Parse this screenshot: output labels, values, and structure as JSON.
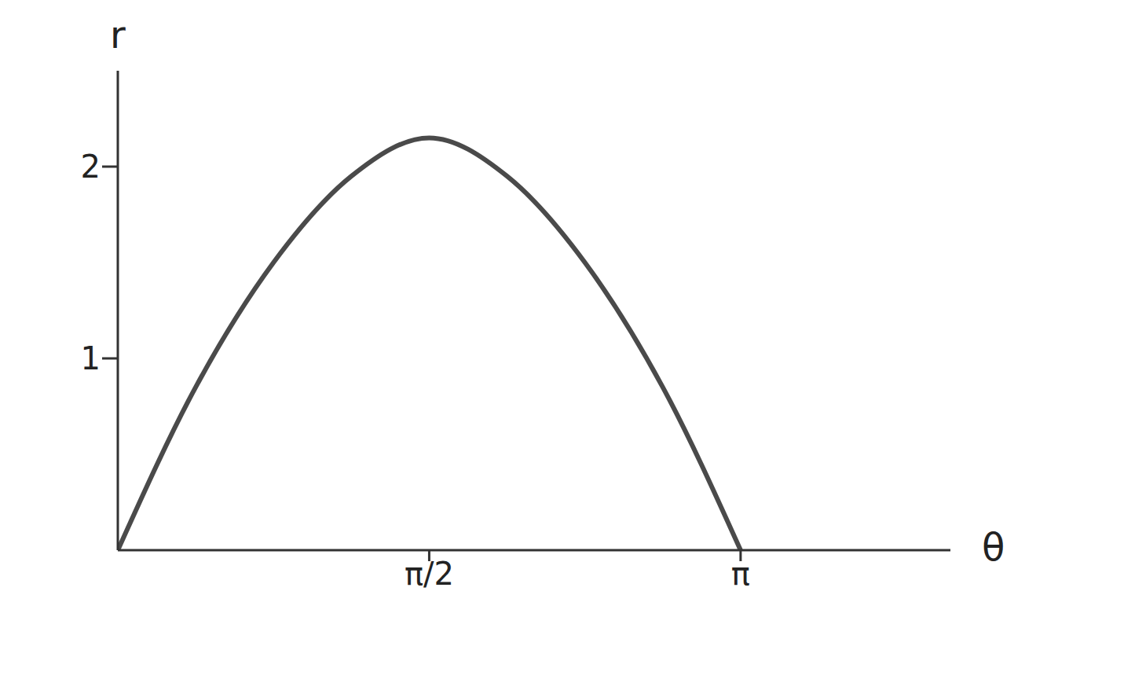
{
  "chart_data": {
    "type": "line",
    "x_label": "θ",
    "y_label": "r",
    "x": [
      0,
      0.3927,
      0.7854,
      1.1781,
      1.5708,
      1.9635,
      2.3562,
      2.7489,
      3.1416
    ],
    "values": [
      0,
      0.85,
      1.5,
      1.95,
      2.15,
      1.95,
      1.5,
      0.85,
      0
    ],
    "color": "#4a4a4a",
    "xlim": [
      0,
      4.2
    ],
    "ylim": [
      0,
      2.5
    ],
    "xticks": [
      {
        "value": 1.5708,
        "label": "π/2"
      },
      {
        "value": 3.1416,
        "label": "π"
      }
    ],
    "yticks": [
      1,
      2
    ],
    "grid": false
  }
}
